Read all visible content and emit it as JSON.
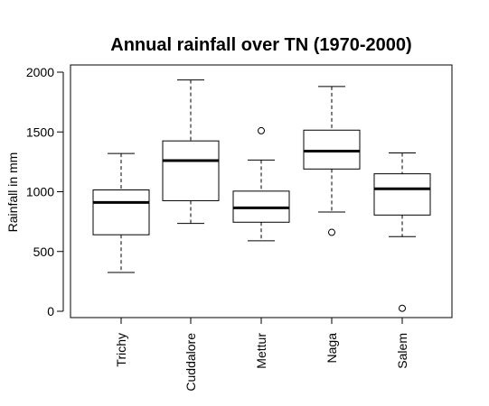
{
  "chart_data": {
    "type": "boxplot",
    "title": "Annual rainfall over TN (1970-2000)",
    "xlabel": "",
    "ylabel": "Rainfall in mm",
    "ylim": [
      0,
      2000
    ],
    "yticks": [
      0,
      500,
      1000,
      1500,
      2000
    ],
    "categories": [
      "Trichy",
      "Cuddalore",
      "Mettur",
      "Naga",
      "Salem"
    ],
    "series": [
      {
        "category": "Trichy",
        "min": 325,
        "q1": 640,
        "median": 910,
        "q3": 1015,
        "max": 1320,
        "outliers": []
      },
      {
        "category": "Cuddalore",
        "min": 735,
        "q1": 925,
        "median": 1260,
        "q3": 1425,
        "max": 1935,
        "outliers": []
      },
      {
        "category": "Mettur",
        "min": 590,
        "q1": 745,
        "median": 865,
        "q3": 1005,
        "max": 1265,
        "outliers": [
          1510
        ]
      },
      {
        "category": "Naga",
        "min": 830,
        "q1": 1190,
        "median": 1340,
        "q3": 1515,
        "max": 1880,
        "outliers": [
          660
        ]
      },
      {
        "category": "Salem",
        "min": 625,
        "q1": 805,
        "median": 1025,
        "q3": 1150,
        "max": 1325,
        "outliers": [
          25
        ]
      }
    ]
  }
}
